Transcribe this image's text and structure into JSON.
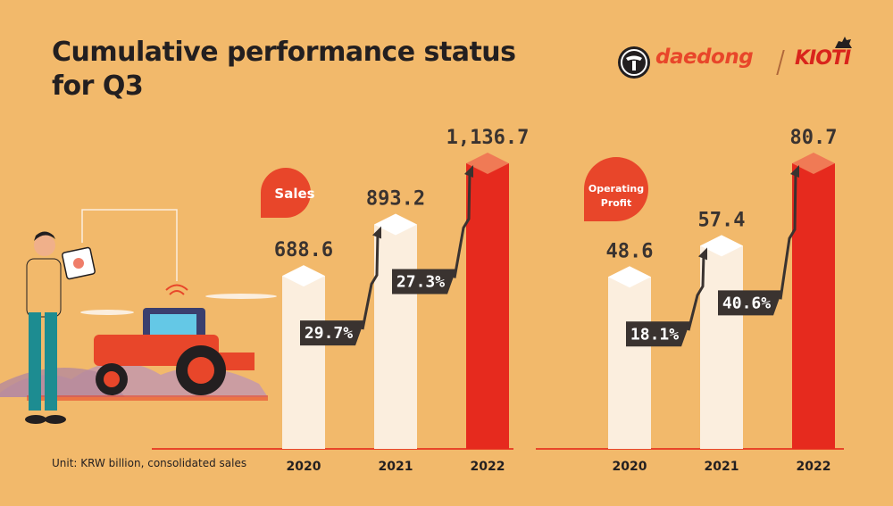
{
  "title_line1": "Cumulative performance status",
  "title_line2": "for Q3",
  "logo": {
    "brand1": "daedong",
    "brand2": "KIOTI",
    "emblem": "daedong-ox-emblem-icon",
    "mascot": "kioti-dog-icon"
  },
  "footnote": "Unit: KRW billion, consolidated sales",
  "colors": {
    "background": "#f2b96b",
    "bar_light": "#fbeede",
    "bar_accent": "#e62a1e",
    "badge": "#e8462a",
    "growth_box": "#3a3330"
  },
  "illustration": "farmer-with-tablet-and-tractor-icon",
  "chart_data": [
    {
      "type": "bar",
      "badge": "Sales",
      "categories": [
        "2020",
        "2021",
        "2022"
      ],
      "values": [
        688.6,
        893.2,
        1136.7
      ],
      "value_labels": [
        "688.6",
        "893.2",
        "1,136.7"
      ],
      "growth_labels": [
        "29.7%",
        "27.3%"
      ],
      "highlight_index": 2
    },
    {
      "type": "bar",
      "badge_line1": "Operating",
      "badge_line2": "Profit",
      "categories": [
        "2020",
        "2021",
        "2022"
      ],
      "values": [
        48.6,
        57.4,
        80.7
      ],
      "value_labels": [
        "48.6",
        "57.4",
        "80.7"
      ],
      "growth_labels": [
        "18.1%",
        "40.6%"
      ],
      "highlight_index": 2
    }
  ]
}
